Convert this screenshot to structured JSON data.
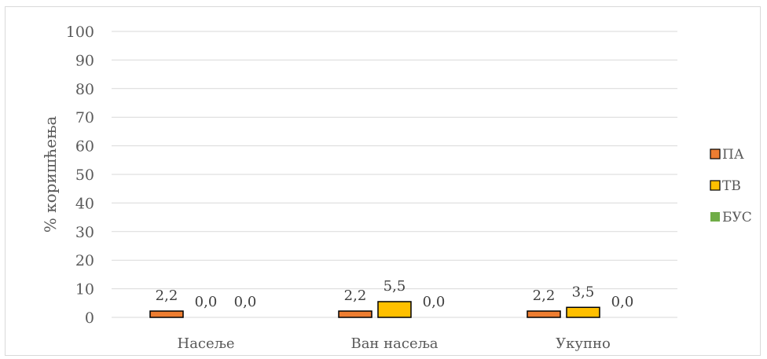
{
  "chart_data": {
    "type": "bar",
    "categories": [
      "Насеље",
      "Ван насеља",
      "Укупно"
    ],
    "series": [
      {
        "name": "ПА",
        "values": [
          2.2,
          2.2,
          2.2
        ],
        "labels": [
          "2,2",
          "2,2",
          "2,2"
        ],
        "color": "#ED7D31"
      },
      {
        "name": "ТВ",
        "values": [
          0.0,
          5.5,
          3.5
        ],
        "labels": [
          "0,0",
          "5,5",
          "3,5"
        ],
        "color": "#FFC000"
      },
      {
        "name": "БУС",
        "values": [
          0.0,
          0.0,
          0.0
        ],
        "labels": [
          "0,0",
          "0,0",
          "0,0"
        ],
        "color": "#70AD47"
      }
    ],
    "ylabel": "% коришћења",
    "ylim": [
      0,
      100
    ],
    "yticks": [
      "0",
      "10",
      "20",
      "30",
      "40",
      "50",
      "60",
      "70",
      "80",
      "90",
      "100"
    ],
    "grid": true,
    "legend_position": "right"
  }
}
